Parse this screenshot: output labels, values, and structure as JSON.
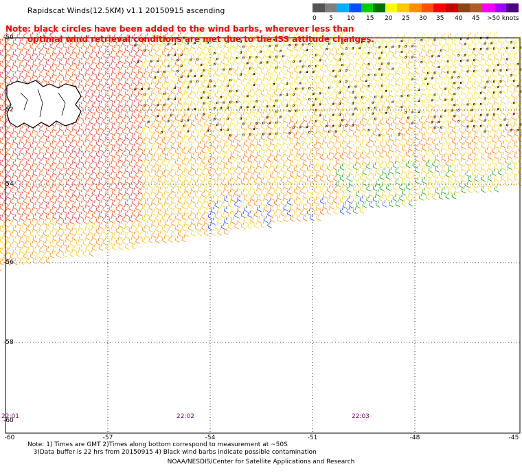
{
  "title": "Rapidscat Winds(12.5KM) v1.1 20150915 ascending",
  "note": {
    "line1": "Note: black circles have been added to the wind barbs, wherever less than",
    "line2": "optimal wind retrieval conditions are met due to the ISS attitude changes."
  },
  "legend": {
    "colors": [
      "#555555",
      "#7f7f7f",
      "#00b0ff",
      "#0050ff",
      "#00d000",
      "#007000",
      "#ffff00",
      "#ffc800",
      "#ff8c00",
      "#ff5000",
      "#ff0000",
      "#c80000",
      "#8b4513",
      "#b05a28",
      "#ff00ff",
      "#a000ff",
      "#4b0082"
    ],
    "labels": [
      "0",
      "5",
      "10",
      "15",
      "20",
      "25",
      "30",
      "35",
      "40",
      "45",
      ">50 knots"
    ]
  },
  "axes": {
    "lat_ticks": [
      "-50",
      "-52",
      "-54",
      "-56",
      "-58",
      "-60"
    ],
    "lon_ticks": [
      "-60",
      "-57",
      "-54",
      "-51",
      "-48",
      "-45"
    ]
  },
  "times": [
    "22:01",
    "22:02",
    "22:03"
  ],
  "footnote": {
    "line1": "Note: 1) Times are GMT 2)Times along bottom correspond to measurement at ~50S",
    "line2": "   3)Data buffer is 22 hrs from 20150915 4) Black wind barbs indicate possible contamination"
  },
  "credit": "NOAA/NESDIS/Center for Satellite Applications and Research"
}
